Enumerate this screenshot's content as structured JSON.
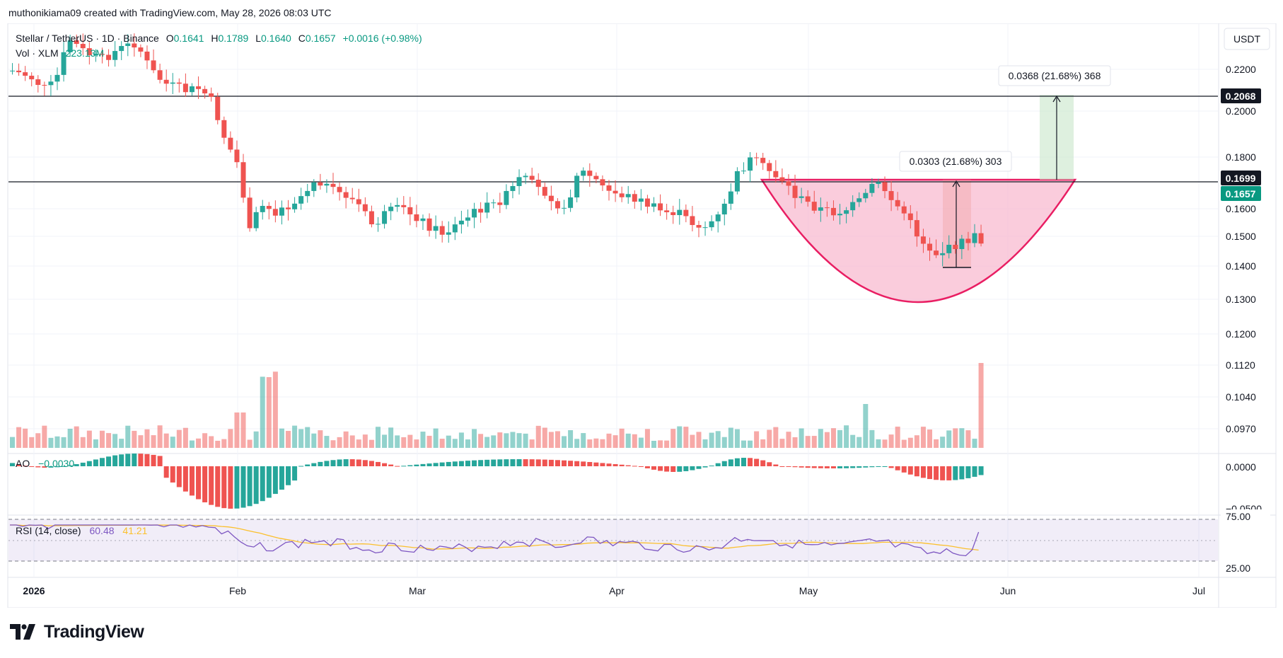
{
  "header": {
    "text": "muthonikiama09 created with TradingView.com, May 28, 2026 08:03 UTC"
  },
  "brand": {
    "name": "TradingView"
  },
  "legend": {
    "symbol": "Stellar / TetherUS · 1D · Binance",
    "o_label": "O",
    "o": "0.1641",
    "h_label": "H",
    "h": "0.1789",
    "l_label": "L",
    "l": "0.1640",
    "c_label": "C",
    "c": "0.1657",
    "change": "+0.0016 (+0.98%)",
    "vol_label": "Vol · XLM",
    "vol_value": "223.13M"
  },
  "currency": "USDT",
  "price_labels": {
    "resistance_top": "0.2068",
    "resistance": "0.1699",
    "last": "0.1657"
  },
  "measures": [
    {
      "text": "0.0303 (21.68%) 303"
    },
    {
      "text": "0.0368 (21.68%) 368"
    }
  ],
  "ao_legend": {
    "label": "AO",
    "value": "−0.0030"
  },
  "rsi_legend": {
    "label": "RSI (14, close)",
    "value": "60.48",
    "ma": "41.21"
  },
  "colors": {
    "up": "#26a69a",
    "down": "#ef5350",
    "rsi": "#7e57c2",
    "rsi_ma": "#fbc02d",
    "cup": "#e91e63"
  },
  "chart_data": {
    "type": "candlestick",
    "title": "Stellar / TetherUS · 1D · Binance",
    "price_axis_ticks": [
      "0.2200",
      "0.2000",
      "0.1800",
      "0.1600",
      "0.1500",
      "0.1400",
      "0.1300",
      "0.1200",
      "0.1120",
      "0.1040",
      "0.0970"
    ],
    "ao_axis_ticks": [
      "0.0000",
      "−0.0500"
    ],
    "rsi_axis_ticks": [
      "75.00",
      "25.00"
    ],
    "x_ticks": [
      "2026",
      "Feb",
      "Mar",
      "Apr",
      "May",
      "Jun",
      "Jul"
    ],
    "horizontal_levels": [
      0.2068,
      0.1699
    ],
    "last_price": 0.1657,
    "rsi_last": 60.48,
    "rsi_ma_last": 41.21,
    "rsi_bands": [
      70,
      30
    ],
    "patterns": [
      "cup"
    ]
  }
}
